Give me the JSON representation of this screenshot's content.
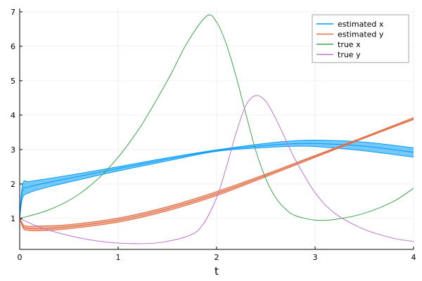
{
  "chart_data": {
    "type": "line",
    "title": "",
    "xlabel": "t",
    "ylabel": "",
    "xlim": [
      0,
      4
    ],
    "ylim": [
      0.1,
      7.1
    ],
    "xticks": [
      0,
      1,
      2,
      3,
      4
    ],
    "xtick_labels": [
      "0",
      "1",
      "2",
      "3",
      "4"
    ],
    "yticks": [
      1,
      2,
      3,
      4,
      5,
      6,
      7
    ],
    "ytick_labels": [
      "1",
      "2",
      "3",
      "4",
      "5",
      "6",
      "7"
    ],
    "grid": true,
    "legend_position": "top-right",
    "series": [
      {
        "name": "estimated x",
        "color": "#009af9",
        "band": true,
        "x": [
          0,
          0.03,
          0.1,
          0.3,
          0.6,
          1.0,
          1.5,
          2.0,
          2.5,
          2.9,
          3.3,
          3.6,
          4.0
        ],
        "y": [
          1.0,
          1.8,
          1.92,
          2.05,
          2.22,
          2.45,
          2.72,
          2.97,
          3.12,
          3.18,
          3.14,
          3.07,
          2.92
        ],
        "lower": [
          1.0,
          1.6,
          1.75,
          1.92,
          2.12,
          2.38,
          2.67,
          2.95,
          3.06,
          3.1,
          3.02,
          2.93,
          2.78
        ],
        "upper": [
          1.0,
          2.0,
          2.07,
          2.16,
          2.3,
          2.5,
          2.76,
          2.99,
          3.18,
          3.27,
          3.25,
          3.19,
          3.05
        ]
      },
      {
        "name": "estimated y",
        "color": "#e26f46",
        "band": true,
        "x": [
          0,
          0.03,
          0.06,
          0.2,
          0.5,
          1.0,
          1.5,
          2.0,
          2.5,
          3.0,
          3.5,
          4.0
        ],
        "y": [
          1.0,
          0.8,
          0.72,
          0.7,
          0.76,
          0.95,
          1.28,
          1.72,
          2.25,
          2.8,
          3.35,
          3.9
        ],
        "lower": [
          1.0,
          0.75,
          0.66,
          0.64,
          0.7,
          0.89,
          1.22,
          1.66,
          2.21,
          2.77,
          3.33,
          3.87
        ],
        "upper": [
          1.0,
          0.85,
          0.78,
          0.78,
          0.82,
          1.01,
          1.34,
          1.78,
          2.29,
          2.83,
          3.37,
          3.93
        ]
      },
      {
        "name": "true x",
        "color": "#3da44d",
        "band": false,
        "x": [
          0,
          0.3,
          0.6,
          0.9,
          1.2,
          1.5,
          1.7,
          1.9,
          2.0,
          2.1,
          2.2,
          2.3,
          2.4,
          2.5,
          2.6,
          2.7,
          2.8,
          3.0,
          3.2,
          3.5,
          3.8,
          4.0
        ],
        "y": [
          1.0,
          1.25,
          1.7,
          2.45,
          3.55,
          5.0,
          6.1,
          6.88,
          6.7,
          6.05,
          5.1,
          4.0,
          2.95,
          2.15,
          1.6,
          1.27,
          1.08,
          0.95,
          0.97,
          1.15,
          1.5,
          1.88
        ]
      },
      {
        "name": "true y",
        "color": "#c271d2",
        "band": false,
        "x": [
          0,
          0.2,
          0.5,
          0.8,
          1.1,
          1.4,
          1.7,
          1.85,
          2.0,
          2.1,
          2.2,
          2.3,
          2.4,
          2.5,
          2.6,
          2.7,
          2.8,
          3.0,
          3.2,
          3.5,
          3.8,
          4.0
        ],
        "y": [
          1.0,
          0.75,
          0.5,
          0.34,
          0.27,
          0.29,
          0.48,
          0.78,
          1.6,
          2.5,
          3.5,
          4.3,
          4.57,
          4.4,
          3.9,
          3.3,
          2.7,
          1.75,
          1.15,
          0.68,
          0.42,
          0.33
        ]
      }
    ]
  }
}
